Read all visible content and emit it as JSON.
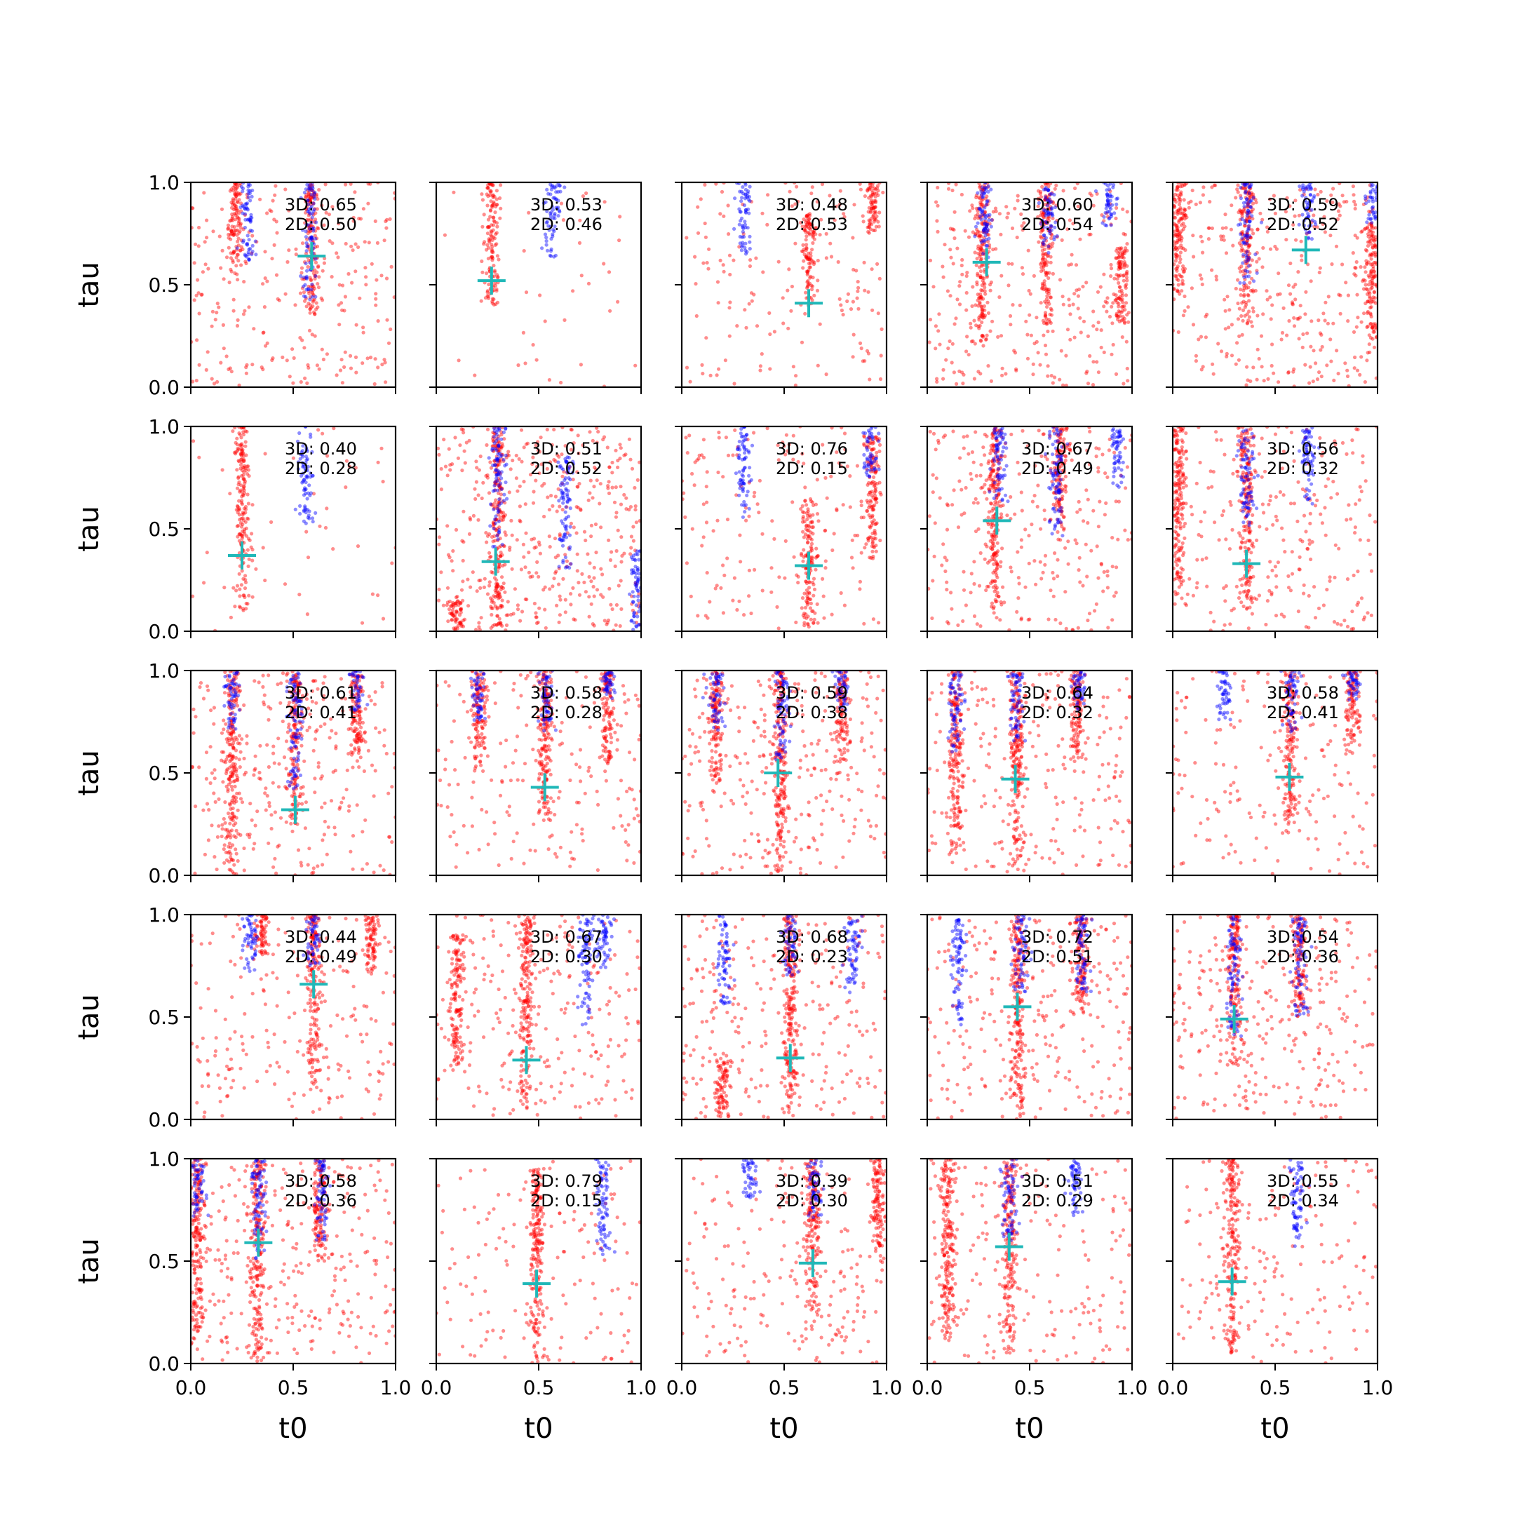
{
  "chart_data": {
    "type": "scatter",
    "layout": {
      "rows": 5,
      "cols": 5,
      "sharex": true,
      "sharey": true
    },
    "xlabel": "t0",
    "ylabel": "tau",
    "xlim": [
      0.0,
      1.0
    ],
    "ylim": [
      0.0,
      1.0
    ],
    "xticks": [
      "0.0",
      "0.5",
      "1.0"
    ],
    "yticks": [
      "0.0",
      "0.5",
      "1.0"
    ],
    "series_styles": {
      "red": {
        "color": "#ff0000",
        "opacity": 0.45
      },
      "blue": {
        "color": "#0000ff",
        "opacity": 0.45
      },
      "marker": {
        "color": "#20b8b8",
        "shape": "+"
      }
    },
    "panels": [
      {
        "row": 0,
        "col": 0,
        "label_3d": "3D: 0.65",
        "label_2d": "2D: 0.50",
        "marker": [
          0.59,
          0.64
        ],
        "red": [
          [
            0.22,
            0.55,
            1.0
          ],
          [
            0.59,
            0.35,
            1.0
          ],
          [
            0.88,
            0.8,
            0.18
          ]
        ],
        "blue": [
          [
            0.28,
            0.62,
            1.0
          ],
          [
            0.58,
            0.42,
            1.0
          ]
        ],
        "scatter": 260
      },
      {
        "row": 0,
        "col": 1,
        "label_3d": "3D: 0.53",
        "label_2d": "2D: 0.46",
        "marker": [
          0.27,
          0.52
        ],
        "red": [
          [
            0.27,
            0.4,
            1.0
          ]
        ],
        "blue": [
          [
            0.57,
            0.62,
            1.0
          ]
        ],
        "scatter": 40
      },
      {
        "row": 0,
        "col": 2,
        "label_3d": "3D: 0.48",
        "label_2d": "2D: 0.53",
        "marker": [
          0.62,
          0.41
        ],
        "red": [
          [
            0.62,
            0.4,
            0.85
          ],
          [
            0.93,
            0.75,
            1.0
          ]
        ],
        "blue": [
          [
            0.3,
            0.65,
            1.0
          ]
        ],
        "scatter": 160
      },
      {
        "row": 0,
        "col": 3,
        "label_3d": "3D: 0.60",
        "label_2d": "2D: 0.54",
        "marker": [
          0.29,
          0.61
        ],
        "red": [
          [
            0.27,
            0.2,
            1.0
          ],
          [
            0.58,
            0.3,
            1.0
          ],
          [
            0.95,
            0.3,
            0.7
          ]
        ],
        "blue": [
          [
            0.28,
            0.6,
            1.0
          ],
          [
            0.59,
            0.65,
            1.0
          ],
          [
            0.89,
            0.78,
            1.0
          ]
        ],
        "scatter": 300
      },
      {
        "row": 0,
        "col": 4,
        "label_3d": "3D: 0.59",
        "label_2d": "2D: 0.52",
        "marker": [
          0.65,
          0.67
        ],
        "red": [
          [
            0.03,
            0.45,
            1.0
          ],
          [
            0.36,
            0.3,
            1.0
          ],
          [
            0.97,
            0.2,
            0.8
          ]
        ],
        "blue": [
          [
            0.36,
            0.5,
            1.0
          ],
          [
            0.66,
            0.7,
            1.0
          ],
          [
            0.98,
            0.8,
            1.0
          ]
        ],
        "scatter": 330
      },
      {
        "row": 1,
        "col": 0,
        "label_3d": "3D: 0.40",
        "label_2d": "2D: 0.28",
        "marker": [
          0.25,
          0.37
        ],
        "red": [
          [
            0.25,
            0.1,
            1.0
          ]
        ],
        "blue": [
          [
            0.56,
            0.52,
            1.0
          ]
        ],
        "scatter": 50
      },
      {
        "row": 1,
        "col": 1,
        "label_3d": "3D: 0.51",
        "label_2d": "2D: 0.52",
        "marker": [
          0.29,
          0.34
        ],
        "red": [
          [
            0.3,
            0.0,
            1.0
          ],
          [
            0.1,
            0.0,
            0.15
          ]
        ],
        "blue": [
          [
            0.3,
            0.4,
            1.0
          ],
          [
            0.63,
            0.3,
            0.85
          ],
          [
            0.98,
            0.0,
            0.4
          ]
        ],
        "scatter": 420
      },
      {
        "row": 1,
        "col": 2,
        "label_3d": "3D: 0.76",
        "label_2d": "2D: 0.15",
        "marker": [
          0.62,
          0.32
        ],
        "red": [
          [
            0.62,
            0.0,
            0.65
          ],
          [
            0.93,
            0.35,
            0.95
          ]
        ],
        "blue": [
          [
            0.3,
            0.55,
            1.0
          ],
          [
            0.92,
            0.75,
            1.0
          ]
        ],
        "scatter": 170
      },
      {
        "row": 1,
        "col": 3,
        "label_3d": "3D: 0.67",
        "label_2d": "2D: 0.49",
        "marker": [
          0.34,
          0.54
        ],
        "red": [
          [
            0.33,
            0.1,
            1.0
          ],
          [
            0.65,
            0.5,
            1.0
          ]
        ],
        "blue": [
          [
            0.35,
            0.6,
            1.0
          ],
          [
            0.63,
            0.45,
            1.0
          ],
          [
            0.93,
            0.7,
            1.0
          ]
        ],
        "scatter": 280
      },
      {
        "row": 1,
        "col": 4,
        "label_3d": "3D: 0.56",
        "label_2d": "2D: 0.32",
        "marker": [
          0.36,
          0.33
        ],
        "red": [
          [
            0.03,
            0.1,
            1.0
          ],
          [
            0.36,
            0.1,
            1.0
          ]
        ],
        "blue": [
          [
            0.36,
            0.5,
            1.0
          ],
          [
            0.66,
            0.6,
            1.0
          ]
        ],
        "scatter": 230
      },
      {
        "row": 2,
        "col": 0,
        "label_3d": "3D: 0.61",
        "label_2d": "2D: 0.41",
        "marker": [
          0.51,
          0.32
        ],
        "red": [
          [
            0.2,
            0.0,
            1.0
          ],
          [
            0.51,
            0.25,
            1.0
          ],
          [
            0.81,
            0.55,
            1.0
          ]
        ],
        "blue": [
          [
            0.2,
            0.7,
            1.0
          ],
          [
            0.51,
            0.4,
            1.0
          ],
          [
            0.81,
            0.8,
            1.0
          ]
        ],
        "scatter": 280
      },
      {
        "row": 2,
        "col": 1,
        "label_3d": "3D: 0.58",
        "label_2d": "2D: 0.28",
        "marker": [
          0.53,
          0.43
        ],
        "red": [
          [
            0.21,
            0.5,
            1.0
          ],
          [
            0.53,
            0.25,
            1.0
          ],
          [
            0.84,
            0.55,
            1.0
          ]
        ],
        "blue": [
          [
            0.21,
            0.75,
            1.0
          ],
          [
            0.54,
            0.7,
            1.0
          ],
          [
            0.84,
            0.85,
            1.0
          ]
        ],
        "scatter": 200
      },
      {
        "row": 2,
        "col": 2,
        "label_3d": "3D: 0.59",
        "label_2d": "2D: 0.38",
        "marker": [
          0.47,
          0.5
        ],
        "red": [
          [
            0.17,
            0.4,
            1.0
          ],
          [
            0.48,
            0.0,
            1.0
          ],
          [
            0.78,
            0.55,
            1.0
          ]
        ],
        "blue": [
          [
            0.17,
            0.7,
            1.0
          ],
          [
            0.49,
            0.55,
            1.0
          ],
          [
            0.78,
            0.8,
            1.0
          ]
        ],
        "scatter": 270
      },
      {
        "row": 2,
        "col": 3,
        "label_3d": "3D: 0.64",
        "label_2d": "2D: 0.32",
        "marker": [
          0.43,
          0.47
        ],
        "red": [
          [
            0.14,
            0.1,
            1.0
          ],
          [
            0.44,
            0.0,
            1.0
          ],
          [
            0.73,
            0.55,
            1.0
          ]
        ],
        "blue": [
          [
            0.14,
            0.6,
            1.0
          ],
          [
            0.44,
            0.65,
            1.0
          ],
          [
            0.74,
            0.8,
            1.0
          ]
        ],
        "scatter": 230
      },
      {
        "row": 2,
        "col": 4,
        "label_3d": "3D: 0.58",
        "label_2d": "2D: 0.41",
        "marker": [
          0.57,
          0.48
        ],
        "red": [
          [
            0.57,
            0.2,
            1.0
          ],
          [
            0.88,
            0.6,
            1.0
          ]
        ],
        "blue": [
          [
            0.25,
            0.75,
            1.0
          ],
          [
            0.58,
            0.7,
            1.0
          ],
          [
            0.88,
            0.85,
            1.0
          ]
        ],
        "scatter": 170
      },
      {
        "row": 3,
        "col": 0,
        "label_3d": "3D: 0.44",
        "label_2d": "2D: 0.49",
        "marker": [
          0.6,
          0.66
        ],
        "red": [
          [
            0.6,
            0.15,
            1.0
          ],
          [
            0.88,
            0.7,
            1.0
          ],
          [
            0.35,
            0.8,
            1.0
          ]
        ],
        "blue": [
          [
            0.29,
            0.7,
            1.0
          ],
          [
            0.6,
            0.75,
            1.0
          ]
        ],
        "scatter": 200
      },
      {
        "row": 3,
        "col": 1,
        "label_3d": "3D: 0.67",
        "label_2d": "2D: 0.30",
        "marker": [
          0.44,
          0.29
        ],
        "red": [
          [
            0.44,
            0.05,
            1.0
          ],
          [
            0.1,
            0.25,
            0.9
          ]
        ],
        "blue": [
          [
            0.73,
            0.45,
            1.0
          ],
          [
            0.82,
            0.7,
            1.0
          ]
        ],
        "scatter": 230
      },
      {
        "row": 3,
        "col": 2,
        "label_3d": "3D: 0.68",
        "label_2d": "2D: 0.23",
        "marker": [
          0.53,
          0.3
        ],
        "red": [
          [
            0.53,
            0.0,
            1.0
          ],
          [
            0.2,
            0.0,
            0.3
          ]
        ],
        "blue": [
          [
            0.21,
            0.55,
            1.0
          ],
          [
            0.53,
            0.7,
            1.0
          ],
          [
            0.84,
            0.6,
            1.0
          ]
        ],
        "scatter": 260
      },
      {
        "row": 3,
        "col": 3,
        "label_3d": "3D: 0.72",
        "label_2d": "2D: 0.51",
        "marker": [
          0.44,
          0.55
        ],
        "red": [
          [
            0.44,
            0.0,
            1.0
          ],
          [
            0.75,
            0.5,
            1.0
          ]
        ],
        "blue": [
          [
            0.15,
            0.45,
            1.0
          ],
          [
            0.46,
            0.6,
            1.0
          ],
          [
            0.76,
            0.6,
            1.0
          ]
        ],
        "scatter": 260
      },
      {
        "row": 3,
        "col": 4,
        "label_3d": "3D: 0.54",
        "label_2d": "2D: 0.36",
        "marker": [
          0.3,
          0.49
        ],
        "red": [
          [
            0.3,
            0.25,
            1.0
          ],
          [
            0.62,
            0.5,
            1.0
          ]
        ],
        "blue": [
          [
            0.3,
            0.4,
            1.0
          ],
          [
            0.62,
            0.5,
            1.0
          ]
        ],
        "scatter": 270
      },
      {
        "row": 4,
        "col": 0,
        "label_3d": "3D: 0.58",
        "label_2d": "2D: 0.36",
        "marker": [
          0.33,
          0.59
        ],
        "red": [
          [
            0.33,
            0.0,
            1.0
          ],
          [
            0.63,
            0.5,
            1.0
          ],
          [
            0.03,
            0.1,
            1.0
          ]
        ],
        "blue": [
          [
            0.33,
            0.5,
            1.0
          ],
          [
            0.64,
            0.6,
            1.0
          ],
          [
            0.03,
            0.7,
            1.0
          ]
        ],
        "scatter": 290
      },
      {
        "row": 4,
        "col": 1,
        "label_3d": "3D: 0.79",
        "label_2d": "2D: 0.15",
        "marker": [
          0.49,
          0.39
        ],
        "red": [
          [
            0.49,
            0.0,
            0.95
          ]
        ],
        "blue": [
          [
            0.81,
            0.5,
            1.0
          ]
        ],
        "scatter": 150
      },
      {
        "row": 4,
        "col": 2,
        "label_3d": "3D: 0.39",
        "label_2d": "2D: 0.30",
        "marker": [
          0.64,
          0.49
        ],
        "red": [
          [
            0.64,
            0.2,
            1.0
          ],
          [
            0.96,
            0.5,
            1.0
          ]
        ],
        "blue": [
          [
            0.33,
            0.8,
            1.0
          ],
          [
            0.65,
            0.7,
            1.0
          ]
        ],
        "scatter": 200
      },
      {
        "row": 4,
        "col": 3,
        "label_3d": "3D: 0.51",
        "label_2d": "2D: 0.29",
        "marker": [
          0.4,
          0.57
        ],
        "red": [
          [
            0.1,
            0.1,
            1.0
          ],
          [
            0.4,
            0.05,
            1.0
          ]
        ],
        "blue": [
          [
            0.4,
            0.6,
            1.0
          ],
          [
            0.72,
            0.7,
            1.0
          ]
        ],
        "scatter": 190
      },
      {
        "row": 4,
        "col": 4,
        "label_3d": "3D: 0.55",
        "label_2d": "2D: 0.34",
        "marker": [
          0.29,
          0.4
        ],
        "red": [
          [
            0.29,
            0.05,
            1.0
          ]
        ],
        "blue": [
          [
            0.61,
            0.55,
            1.0
          ]
        ],
        "scatter": 170
      }
    ]
  }
}
